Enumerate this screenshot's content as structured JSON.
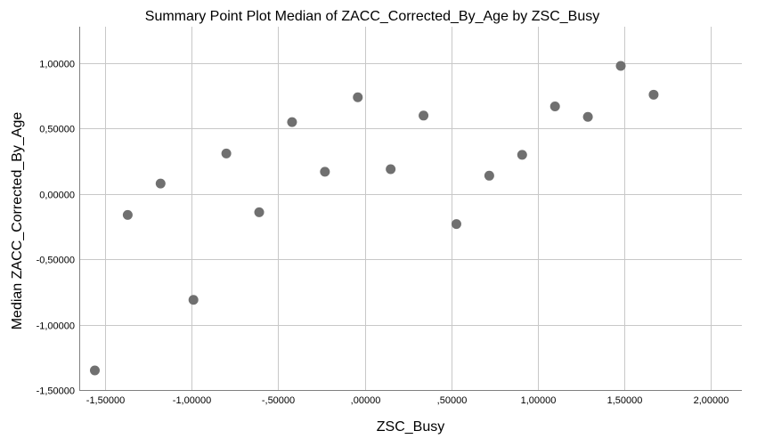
{
  "chart_data": {
    "type": "scatter",
    "title": "Summary Point Plot Median of ZACC_Corrected_By_Age by ZSC_Busy",
    "xlabel": "ZSC_Busy",
    "ylabel": "Median ZACC_Corrected_By_Age",
    "xlim": [
      -1.65,
      2.18
    ],
    "ylim": [
      -1.5,
      1.28
    ],
    "x_ticks": [
      -1.5,
      -1.0,
      -0.5,
      0.0,
      0.5,
      1.0,
      1.5,
      2.0
    ],
    "x_tick_labels": [
      "-1,50000",
      "-1,00000",
      "-,50000",
      ",00000",
      ",50000",
      "1,00000",
      "1,50000",
      "2,00000"
    ],
    "y_ticks": [
      1.0,
      0.5,
      0.0,
      -0.5,
      -1.0,
      -1.5
    ],
    "y_tick_labels": [
      "1,00000",
      "0,50000",
      "0,00000",
      "-0,50000",
      "-1,00000",
      "-1,50000"
    ],
    "grid": true,
    "legend": false,
    "point_color": "#707070",
    "series": [
      {
        "points": [
          {
            "x": -1.56,
            "y": -1.35
          },
          {
            "x": -1.37,
            "y": -0.16
          },
          {
            "x": -1.18,
            "y": 0.08
          },
          {
            "x": -0.99,
            "y": -0.81
          },
          {
            "x": -0.8,
            "y": 0.31
          },
          {
            "x": -0.61,
            "y": -0.14
          },
          {
            "x": -0.42,
            "y": 0.55
          },
          {
            "x": -0.23,
            "y": 0.17
          },
          {
            "x": -0.04,
            "y": 0.74
          },
          {
            "x": 0.15,
            "y": 0.19
          },
          {
            "x": 0.34,
            "y": 0.6
          },
          {
            "x": 0.53,
            "y": -0.23
          },
          {
            "x": 0.72,
            "y": 0.14
          },
          {
            "x": 0.91,
            "y": 0.3
          },
          {
            "x": 1.1,
            "y": 0.67
          },
          {
            "x": 1.29,
            "y": 0.59
          },
          {
            "x": 1.48,
            "y": 0.98
          },
          {
            "x": 1.67,
            "y": 0.76
          }
        ]
      }
    ]
  }
}
